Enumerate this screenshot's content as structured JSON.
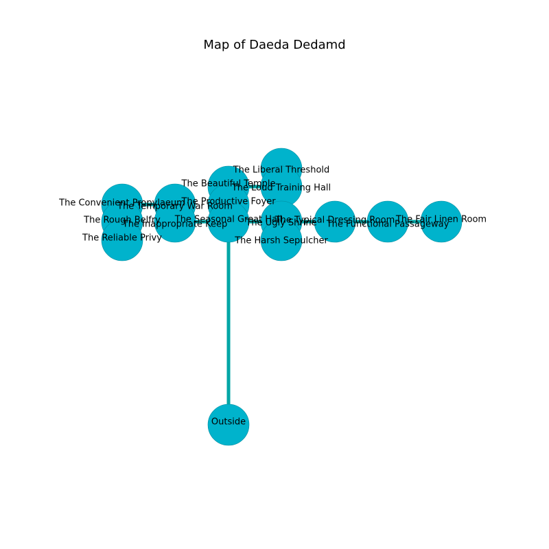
{
  "title": "Map of Daeda Dedamd",
  "colors": {
    "node_fill": "#00b3cc",
    "node_stroke": "#008b9e",
    "edge": "#00a6a6"
  },
  "rooms": [
    {
      "id": "liberal-threshold",
      "label": "The Liberal Threshold"
    },
    {
      "id": "loud-training-hall",
      "label": "The Loud Training Hall"
    },
    {
      "id": "beautiful-temple",
      "label": "The Beautiful Temple"
    },
    {
      "id": "convenient-propylaeum",
      "label": "The Convenient Propylaeum"
    },
    {
      "id": "temporary-war-room",
      "label": "The Temporary War Room"
    },
    {
      "id": "productive-foyer",
      "label": "The Productive Foyer"
    },
    {
      "id": "rough-belfry",
      "label": "The Rough Belfry"
    },
    {
      "id": "inappropriate-keep",
      "label": "The Inappropriate Keep"
    },
    {
      "id": "seasonal-great-hall",
      "label": "The Seasonal Great Hall"
    },
    {
      "id": "ugly-shrine",
      "label": "The Ugly Shrine"
    },
    {
      "id": "typical-dressing-room",
      "label": "The Typical Dressing Room"
    },
    {
      "id": "functional-passageway",
      "label": "The Functional Passageway"
    },
    {
      "id": "fair-linen-room",
      "label": "The Fair Linen Room"
    },
    {
      "id": "harsh-sepulcher",
      "label": "The Harsh Sepulcher"
    },
    {
      "id": "reliable-privy",
      "label": "The Reliable Privy"
    },
    {
      "id": "outside",
      "label": "Outside"
    }
  ],
  "connections": [
    [
      "outside",
      "seasonal-great-hall"
    ],
    [
      "seasonal-great-hall",
      "inappropriate-keep"
    ],
    [
      "seasonal-great-hall",
      "ugly-shrine"
    ],
    [
      "seasonal-great-hall",
      "productive-foyer"
    ],
    [
      "productive-foyer",
      "beautiful-temple"
    ],
    [
      "beautiful-temple",
      "loud-training-hall"
    ],
    [
      "loud-training-hall",
      "liberal-threshold"
    ],
    [
      "ugly-shrine",
      "harsh-sepulcher"
    ],
    [
      "ugly-shrine",
      "typical-dressing-room"
    ],
    [
      "typical-dressing-room",
      "functional-passageway"
    ],
    [
      "functional-passageway",
      "fair-linen-room"
    ],
    [
      "inappropriate-keep",
      "temporary-war-room"
    ],
    [
      "temporary-war-room",
      "convenient-propylaeum"
    ],
    [
      "convenient-propylaeum",
      "rough-belfry"
    ],
    [
      "rough-belfry",
      "reliable-privy"
    ]
  ]
}
